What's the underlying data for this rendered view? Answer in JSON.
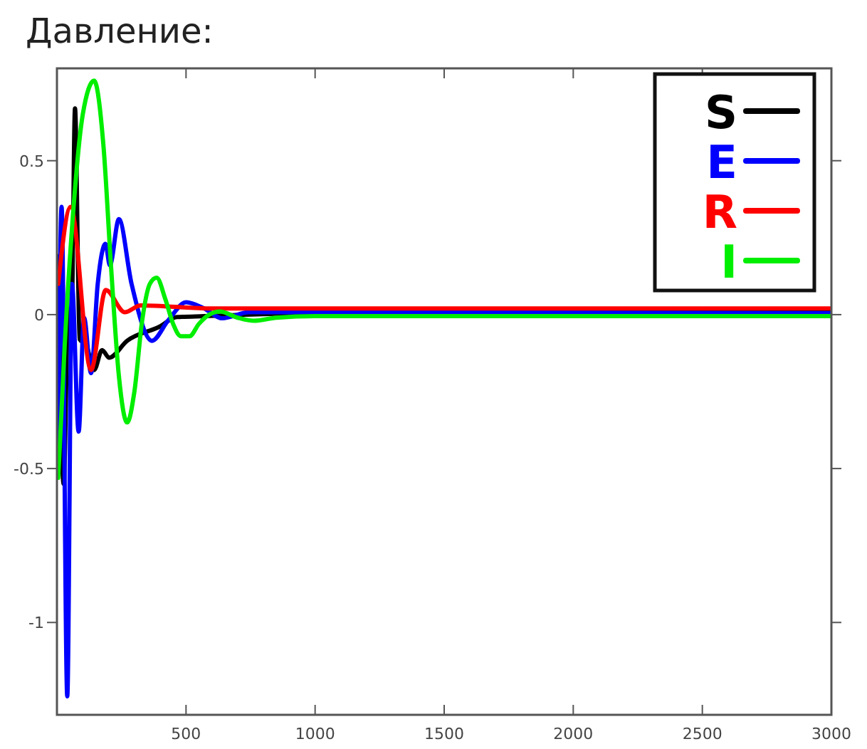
{
  "chart_data": {
    "type": "line",
    "title": "Давление:",
    "xlim": [
      0,
      3000
    ],
    "xticks": [
      500,
      1000,
      1500,
      2000,
      2500,
      3000
    ],
    "ylim": [
      -1.3,
      0.8
    ],
    "yticks": [
      0.5,
      0,
      -0.5,
      -1
    ],
    "grid": false,
    "legend": "top right",
    "marker": "none",
    "line_style": "solid",
    "series": [
      {
        "name": "S",
        "color": "#000000",
        "x": [
          5,
          26,
          44,
          56,
          70,
          88,
          114,
          144,
          175,
          202,
          272,
          395,
          465,
          570,
          1000,
          3000
        ],
        "values": [
          0.19,
          -0.55,
          0.02,
          -0.05,
          0.67,
          -0.08,
          -0.1,
          -0.18,
          -0.115,
          -0.14,
          -0.085,
          -0.04,
          -0.008,
          -0.005,
          0.005,
          0.008
        ]
      },
      {
        "name": "E",
        "color": "#0000ff",
        "x": [
          5,
          18,
          40,
          58,
          84,
          105,
          132,
          158,
          188,
          205,
          240,
          289,
          368,
          430,
          500,
          570,
          640,
          745,
          3000
        ],
        "values": [
          -0.44,
          0.35,
          -1.24,
          0.1,
          -0.38,
          -0.01,
          -0.19,
          0.1,
          0.23,
          0.16,
          0.31,
          0.1,
          -0.085,
          -0.02,
          0.04,
          0.02,
          -0.012,
          0.008,
          0.005
        ]
      },
      {
        "name": "R",
        "color": "#ff0000",
        "x": [
          5,
          53,
          132,
          189,
          263,
          324,
          600,
          3000
        ],
        "values": [
          0.1,
          0.35,
          -0.18,
          0.08,
          0.008,
          0.03,
          0.02,
          0.02
        ]
      },
      {
        "name": "I",
        "color": "#00ee00",
        "x": [
          5,
          30,
          60,
          100,
          144,
          180,
          210,
          240,
          272,
          300,
          330,
          360,
          386,
          420,
          450,
          480,
          514,
          550,
          590,
          631,
          700,
          763,
          850,
          1000,
          3000
        ],
        "values": [
          -0.53,
          -0.1,
          0.3,
          0.65,
          0.76,
          0.55,
          0.15,
          -0.2,
          -0.35,
          -0.25,
          -0.02,
          0.1,
          0.12,
          0.05,
          -0.03,
          -0.07,
          -0.07,
          -0.03,
          0,
          0.01,
          -0.01,
          -0.02,
          -0.01,
          -0.005,
          -0.005
        ]
      }
    ]
  }
}
